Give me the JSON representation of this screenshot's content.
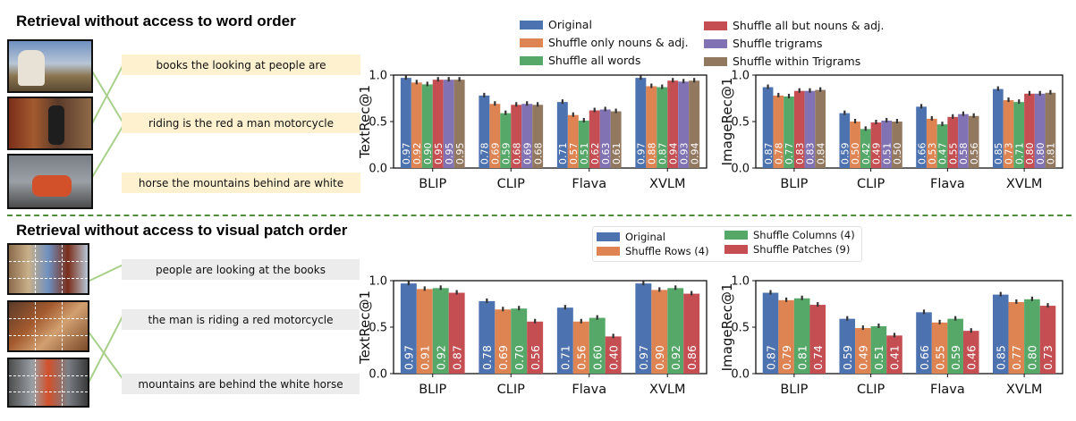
{
  "sections": {
    "top_title": "Retrieval without access to word order",
    "bottom_title": "Retrieval without access to visual patch order"
  },
  "captions_top": [
    "books the looking at people are",
    "riding is the red a man motorcycle",
    "horse the mountains behind are white"
  ],
  "captions_bottom": [
    "people are looking at the books",
    "the man is riding a red motorcycle",
    "mountains are behind the white horse"
  ],
  "colors": {
    "original": "#4c72b0",
    "orange": "#dd8452",
    "green": "#55a868",
    "red": "#c44e52",
    "purple": "#8172b3",
    "brown": "#937860",
    "divider": "#4f8f3a"
  },
  "chart_data": [
    {
      "type": "bar",
      "ylabel": "TextRec@1",
      "ylim": [
        0,
        1
      ],
      "yticks": [
        "0.0",
        "0.5",
        "1.0"
      ],
      "categories": [
        "BLIP",
        "CLIP",
        "Flava",
        "XVLM"
      ],
      "legend_placement": "top",
      "series": [
        {
          "name": "Original",
          "values": [
            0.97,
            0.78,
            0.71,
            0.97
          ]
        },
        {
          "name": "Shuffle only nouns & adj.",
          "values": [
            0.92,
            0.69,
            0.57,
            0.88
          ]
        },
        {
          "name": "Shuffle all words",
          "values": [
            0.9,
            0.59,
            0.51,
            0.87
          ]
        },
        {
          "name": "Shuffle all but nouns & adj.",
          "values": [
            0.95,
            0.68,
            0.62,
            0.94
          ]
        },
        {
          "name": "Shuffle trigrams",
          "values": [
            0.95,
            0.69,
            0.63,
            0.93
          ]
        },
        {
          "name": "Shuffle within Trigrams",
          "values": [
            0.95,
            0.68,
            0.61,
            0.94
          ]
        }
      ]
    },
    {
      "type": "bar",
      "ylabel": "ImageRec@1",
      "ylim": [
        0,
        1
      ],
      "yticks": [
        "0.0",
        "0.5",
        "1.0"
      ],
      "categories": [
        "BLIP",
        "CLIP",
        "Flava",
        "XVLM"
      ],
      "legend_placement": "top",
      "series": [
        {
          "name": "Original",
          "values": [
            0.87,
            0.59,
            0.66,
            0.85
          ]
        },
        {
          "name": "Shuffle only nouns & adj.",
          "values": [
            0.78,
            0.5,
            0.53,
            0.73
          ]
        },
        {
          "name": "Shuffle all words",
          "values": [
            0.77,
            0.42,
            0.47,
            0.71
          ]
        },
        {
          "name": "Shuffle all but nouns & adj.",
          "values": [
            0.83,
            0.49,
            0.55,
            0.8
          ]
        },
        {
          "name": "Shuffle trigrams",
          "values": [
            0.83,
            0.51,
            0.58,
            0.8
          ]
        },
        {
          "name": "Shuffle within Trigrams",
          "values": [
            0.84,
            0.5,
            0.56,
            0.81
          ]
        }
      ]
    },
    {
      "type": "bar",
      "ylabel": "TextRec@1",
      "ylim": [
        0,
        1
      ],
      "yticks": [
        "0.0",
        "0.5",
        "1.0"
      ],
      "categories": [
        "BLIP",
        "CLIP",
        "Flava",
        "XVLM"
      ],
      "legend_placement": "top",
      "series": [
        {
          "name": "Original",
          "values": [
            0.97,
            0.78,
            0.71,
            0.97
          ]
        },
        {
          "name": "Shuffle Rows (4)",
          "values": [
            0.91,
            0.69,
            0.56,
            0.9
          ]
        },
        {
          "name": "Shuffle Columns (4)",
          "values": [
            0.92,
            0.7,
            0.6,
            0.92
          ]
        },
        {
          "name": "Shuffle Patches (9)",
          "values": [
            0.87,
            0.56,
            0.4,
            0.86
          ]
        }
      ]
    },
    {
      "type": "bar",
      "ylabel": "ImageRec@1",
      "ylim": [
        0,
        1
      ],
      "yticks": [
        "0.0",
        "0.5",
        "1.0"
      ],
      "categories": [
        "BLIP",
        "CLIP",
        "Flava",
        "XVLM"
      ],
      "legend_placement": "top",
      "series": [
        {
          "name": "Original",
          "values": [
            0.87,
            0.59,
            0.66,
            0.85
          ]
        },
        {
          "name": "Shuffle Rows (4)",
          "values": [
            0.79,
            0.49,
            0.55,
            0.77
          ]
        },
        {
          "name": "Shuffle Columns (4)",
          "values": [
            0.81,
            0.51,
            0.59,
            0.8
          ]
        },
        {
          "name": "Shuffle Patches (9)",
          "values": [
            0.74,
            0.41,
            0.46,
            0.73
          ]
        }
      ]
    }
  ]
}
